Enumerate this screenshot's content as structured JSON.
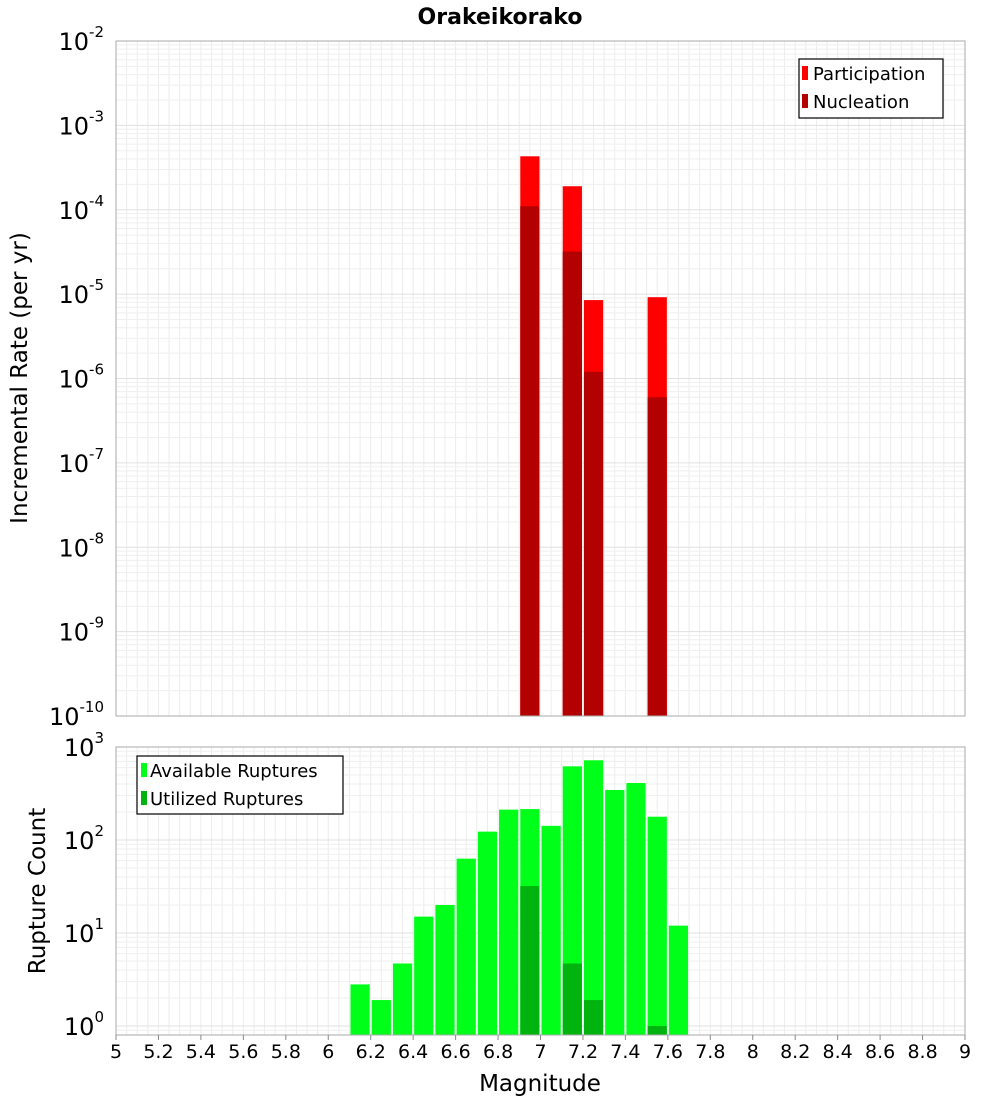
{
  "chart_data": [
    {
      "type": "bar",
      "title": "Orakeikorako",
      "xlabel": "",
      "ylabel": "Incremental Rate (per yr)",
      "yscale": "log",
      "xlim": [
        5,
        9
      ],
      "ylim": [
        1e-10,
        0.01
      ],
      "y_tick_labels": [
        {
          "base": "10",
          "exp": "-10"
        },
        {
          "base": "10",
          "exp": "-9"
        },
        {
          "base": "10",
          "exp": "-8"
        },
        {
          "base": "10",
          "exp": "-7"
        },
        {
          "base": "10",
          "exp": "-6"
        },
        {
          "base": "10",
          "exp": "-5"
        },
        {
          "base": "10",
          "exp": "-4"
        },
        {
          "base": "10",
          "exp": "-3"
        },
        {
          "base": "10",
          "exp": "-2"
        }
      ],
      "legend": [
        "Participation",
        "Nucleation"
      ],
      "legend_position": "top-right",
      "bin_width": 0.1,
      "series": [
        {
          "name": "Participation",
          "color": "#ff0000",
          "x": [
            6.95,
            7.15,
            7.25,
            7.55
          ],
          "values": [
            0.00043,
            0.00019,
            8.5e-06,
            9.2e-06
          ]
        },
        {
          "name": "Nucleation",
          "color": "#b30000",
          "x": [
            6.95,
            7.15,
            7.25,
            7.55
          ],
          "values": [
            0.00011,
            3.2e-05,
            1.2e-06,
            6e-07
          ]
        }
      ]
    },
    {
      "type": "bar",
      "title": "",
      "xlabel": "Magnitude",
      "ylabel": "Rupture Count",
      "yscale": "log",
      "xlim": [
        5,
        9
      ],
      "ylim": [
        0.8,
        1000
      ],
      "x_ticks": [
        "5",
        "5.2",
        "5.4",
        "5.6",
        "5.8",
        "6",
        "6.2",
        "6.4",
        "6.6",
        "6.8",
        "7",
        "7.2",
        "7.4",
        "7.6",
        "7.8",
        "8",
        "8.2",
        "8.4",
        "8.6",
        "8.8",
        "9"
      ],
      "y_tick_labels": [
        {
          "base": "10",
          "exp": "0"
        },
        {
          "base": "10",
          "exp": "1"
        },
        {
          "base": "10",
          "exp": "2"
        },
        {
          "base": "10",
          "exp": "3"
        }
      ],
      "legend": [
        "Available Ruptures",
        "Utilized Ruptures"
      ],
      "legend_position": "top-left",
      "bin_width": 0.1,
      "series": [
        {
          "name": "Available Ruptures",
          "color": "#00ff19",
          "x": [
            6.15,
            6.25,
            6.35,
            6.45,
            6.55,
            6.65,
            6.75,
            6.85,
            6.95,
            7.05,
            7.15,
            7.25,
            7.35,
            7.45,
            7.55,
            7.65
          ],
          "values": [
            2.8,
            1.9,
            4.7,
            15,
            20,
            63,
            123,
            212,
            215,
            142,
            620,
            720,
            345,
            410,
            178,
            12
          ]
        },
        {
          "name": "Utilized Ruptures",
          "color": "#00b30f",
          "x": [
            6.95,
            7.15,
            7.25,
            7.55
          ],
          "values": [
            32,
            4.7,
            1.9,
            1
          ]
        }
      ]
    }
  ]
}
